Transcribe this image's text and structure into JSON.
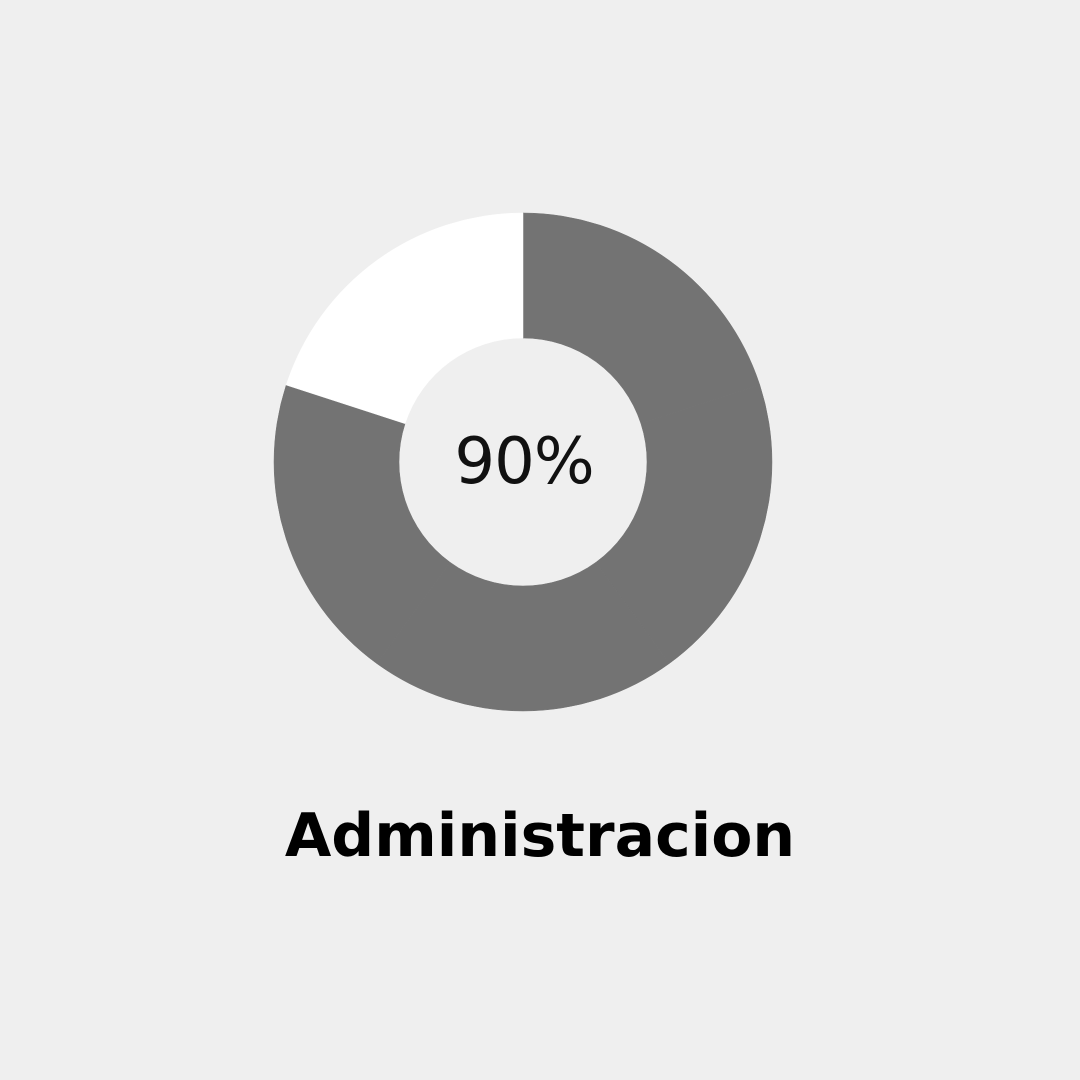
{
  "chart_data": {
    "type": "pie",
    "variant": "donut",
    "percent": 90,
    "segments": 5,
    "filled_segments": [
      0,
      1,
      2,
      3
    ],
    "empty_segments": [
      4
    ],
    "center_label": "90%",
    "label": "Administracion",
    "colors": {
      "filled": "#737373",
      "empty": "#ffffff",
      "background": "#efefef"
    }
  }
}
